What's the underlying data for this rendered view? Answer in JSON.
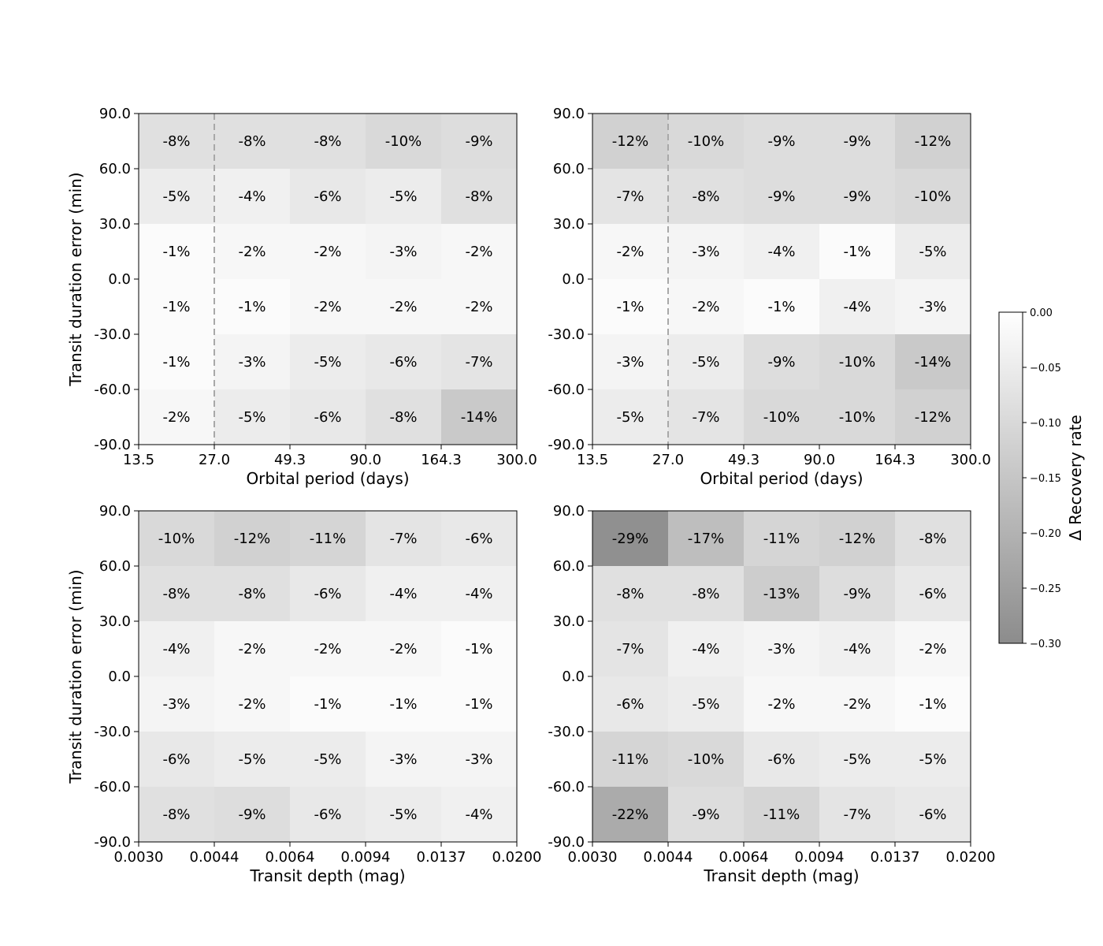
{
  "chart_data": [
    {
      "type": "heatmap",
      "xlabel": "Orbital period (days)",
      "ylabel": "Transit duration error (min)",
      "x_ticks": [
        "13.5",
        "27.0",
        "49.3",
        "90.0",
        "164.3",
        "300.0"
      ],
      "y_ticks": [
        "-90.0",
        "-60.0",
        "-30.0",
        "0.0",
        "30.0",
        "60.0",
        "90.0"
      ],
      "rows_top_to_bottom": [
        [
          "-8%",
          "-8%",
          "-8%",
          "-10%",
          "-9%"
        ],
        [
          "-5%",
          "-4%",
          "-6%",
          "-5%",
          "-8%"
        ],
        [
          "-1%",
          "-2%",
          "-2%",
          "-3%",
          "-2%"
        ],
        [
          "-1%",
          "-1%",
          "-2%",
          "-2%",
          "-2%"
        ],
        [
          "-1%",
          "-3%",
          "-5%",
          "-6%",
          "-7%"
        ],
        [
          "-2%",
          "-5%",
          "-6%",
          "-8%",
          "-14%"
        ]
      ],
      "vline_x": 27.0
    },
    {
      "type": "heatmap",
      "xlabel": "Orbital period (days)",
      "ylabel": "",
      "x_ticks": [
        "13.5",
        "27.0",
        "49.3",
        "90.0",
        "164.3",
        "300.0"
      ],
      "y_ticks": [
        "-90.0",
        "-60.0",
        "-30.0",
        "0.0",
        "30.0",
        "60.0",
        "90.0"
      ],
      "rows_top_to_bottom": [
        [
          "-12%",
          "-10%",
          "-9%",
          "-9%",
          "-12%"
        ],
        [
          "-7%",
          "-8%",
          "-9%",
          "-9%",
          "-10%"
        ],
        [
          "-2%",
          "-3%",
          "-4%",
          "-1%",
          "-5%"
        ],
        [
          "-1%",
          "-2%",
          "-1%",
          "-4%",
          "-3%"
        ],
        [
          "-3%",
          "-5%",
          "-9%",
          "-10%",
          "-14%"
        ],
        [
          "-5%",
          "-7%",
          "-10%",
          "-10%",
          "-12%"
        ]
      ],
      "vline_x": 27.0
    },
    {
      "type": "heatmap",
      "xlabel": "Transit depth (mag)",
      "ylabel": "Transit duration error (min)",
      "x_ticks": [
        "0.0030",
        "0.0044",
        "0.0064",
        "0.0094",
        "0.0137",
        "0.0200"
      ],
      "y_ticks": [
        "-90.0",
        "-60.0",
        "-30.0",
        "0.0",
        "30.0",
        "60.0",
        "90.0"
      ],
      "rows_top_to_bottom": [
        [
          "-10%",
          "-12%",
          "-11%",
          "-7%",
          "-6%"
        ],
        [
          "-8%",
          "-8%",
          "-6%",
          "-4%",
          "-4%"
        ],
        [
          "-4%",
          "-2%",
          "-2%",
          "-2%",
          "-1%"
        ],
        [
          "-3%",
          "-2%",
          "-1%",
          "-1%",
          "-1%"
        ],
        [
          "-6%",
          "-5%",
          "-5%",
          "-3%",
          "-3%"
        ],
        [
          "-8%",
          "-9%",
          "-6%",
          "-5%",
          "-4%"
        ]
      ]
    },
    {
      "type": "heatmap",
      "xlabel": "Transit depth (mag)",
      "ylabel": "",
      "x_ticks": [
        "0.0030",
        "0.0044",
        "0.0064",
        "0.0094",
        "0.0137",
        "0.0200"
      ],
      "y_ticks": [
        "-90.0",
        "-60.0",
        "-30.0",
        "0.0",
        "30.0",
        "60.0",
        "90.0"
      ],
      "rows_top_to_bottom": [
        [
          "-29%",
          "-17%",
          "-11%",
          "-12%",
          "-8%"
        ],
        [
          "-8%",
          "-8%",
          "-13%",
          "-9%",
          "-6%"
        ],
        [
          "-7%",
          "-4%",
          "-3%",
          "-4%",
          "-2%"
        ],
        [
          "-6%",
          "-5%",
          "-2%",
          "-2%",
          "-1%"
        ],
        [
          "-11%",
          "-10%",
          "-6%",
          "-5%",
          "-5%"
        ],
        [
          "-22%",
          "-9%",
          "-11%",
          "-7%",
          "-6%"
        ]
      ]
    }
  ],
  "colorbar": {
    "label": "Δ Recovery rate",
    "ticks": [
      "0.00",
      "−0.05",
      "−0.10",
      "−0.15",
      "−0.20",
      "−0.25",
      "−0.30"
    ],
    "range": [
      -0.3,
      0.0
    ],
    "color_at_0": "#ffffff",
    "color_at_min": "#8c8c8c"
  }
}
